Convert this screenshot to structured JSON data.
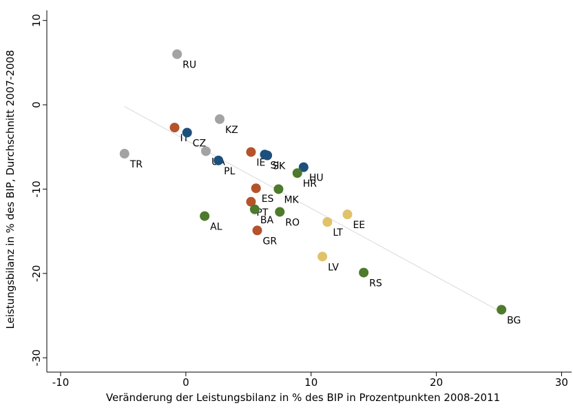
{
  "chart_data": {
    "type": "scatter",
    "x_label": "Veränderung der Leistungsbilanz in % des BIP in Prozentpunkten 2008-2011",
    "y_label": "Leistungsbilanz in % des BIP, Durchschnitt 2007-2008",
    "xlim": [
      -11.1,
      30.8
    ],
    "ylim": [
      -31.7,
      11.2
    ],
    "xticks": [
      -10,
      0,
      10,
      20,
      30
    ],
    "yticks": [
      -30,
      -20,
      -10,
      0,
      10
    ],
    "series": [
      {
        "color": "#a3a3a3",
        "labels": [
          "RU",
          "KZ",
          "TR",
          "UA"
        ],
        "x": [
          -0.7,
          2.7,
          -4.9,
          1.6
        ],
        "values": [
          6.0,
          -1.7,
          -5.8,
          -5.5
        ]
      },
      {
        "color": "#b5532a",
        "labels": [
          "IT",
          "IE",
          "ES",
          "PT",
          "GR"
        ],
        "x": [
          -0.9,
          5.2,
          5.6,
          5.2,
          5.7
        ],
        "values": [
          -2.7,
          -5.6,
          -9.9,
          -11.5,
          -14.9
        ]
      },
      {
        "color": "#1d4f7c",
        "labels": [
          "CZ",
          "PL",
          "SI",
          "SK",
          "HU"
        ],
        "x": [
          0.1,
          2.6,
          6.3,
          6.5,
          9.4
        ],
        "values": [
          -3.3,
          -6.6,
          -5.9,
          -6.0,
          -7.4
        ]
      },
      {
        "color": "#4d7a2c",
        "labels": [
          "HR",
          "MK",
          "BA",
          "RO",
          "AL",
          "RS",
          "BG"
        ],
        "x": [
          8.9,
          7.4,
          5.5,
          7.5,
          1.5,
          14.2,
          25.2
        ],
        "values": [
          -8.1,
          -10.0,
          -12.4,
          -12.7,
          -13.2,
          -19.9,
          -24.3
        ]
      },
      {
        "color": "#e0c26a",
        "labels": [
          "LT",
          "EE",
          "LV"
        ],
        "x": [
          11.3,
          12.9,
          10.9
        ],
        "values": [
          -13.9,
          -13.0,
          -18.0
        ]
      }
    ],
    "trend": {
      "color": "#d9d9d9",
      "x": [
        -4.9,
        25.2
      ],
      "values": [
        -0.2,
        -24.6
      ]
    }
  }
}
